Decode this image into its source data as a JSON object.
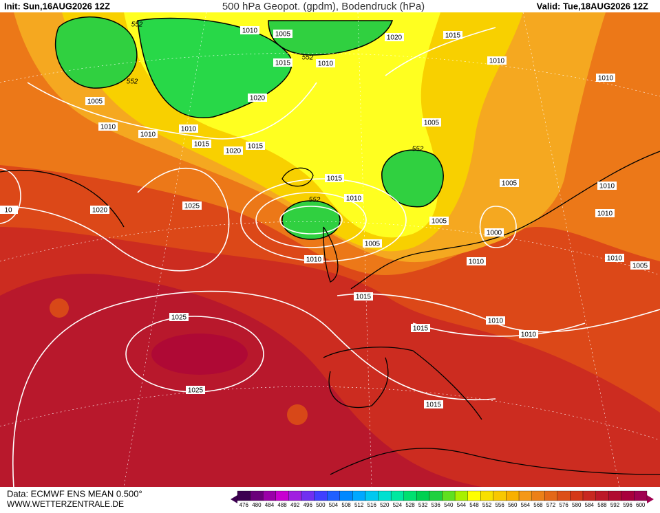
{
  "header": {
    "init": "Init: Sun,16AUG2026 12Z",
    "title": "500 hPa Geopot. (gpdm), Bodendruck (hPa)",
    "valid": "Valid: Tue,18AUG2026 12Z"
  },
  "isobar_labels": [
    "1010",
    "1005",
    "1020",
    "1015",
    "1010",
    "1010",
    "1010",
    "1015",
    "1020",
    "1005",
    "1010",
    "1010",
    "1010",
    "1015",
    "1020",
    "1015",
    "1005",
    "1015",
    "1010",
    "1005",
    "1010",
    "1020",
    "1025",
    "1010",
    "1005",
    "1000",
    "1005",
    "1010",
    "1010",
    "1010",
    "1005",
    "1015",
    "1010",
    "1010",
    "1015",
    "1025",
    "1025",
    "1015",
    "10"
  ],
  "geopotential_labels": [
    "552",
    "552",
    "552",
    "552",
    "552"
  ],
  "footer": {
    "source": "Data: ECMWF ENS MEAN 0.500°",
    "site": "WWW.WETTERZENTRALE.DE"
  },
  "legend": {
    "levels": [
      "476",
      "480",
      "484",
      "488",
      "492",
      "496",
      "500",
      "504",
      "508",
      "512",
      "516",
      "520",
      "524",
      "528",
      "532",
      "536",
      "540",
      "544",
      "548",
      "552",
      "556",
      "560",
      "564",
      "568",
      "572",
      "576",
      "580",
      "584",
      "588",
      "592",
      "596",
      "600"
    ],
    "colors": [
      "#3c0050",
      "#6a007a",
      "#9a00a8",
      "#c800d0",
      "#a020e0",
      "#7030f0",
      "#4040ff",
      "#2060ff",
      "#0088ff",
      "#00a8ff",
      "#00c8f0",
      "#00e0d0",
      "#00e8a0",
      "#00e070",
      "#00d050",
      "#20d040",
      "#60e020",
      "#a8f000",
      "#ffff00",
      "#f8e000",
      "#f8c800",
      "#f8b000",
      "#f49818",
      "#ec8018",
      "#e46818",
      "#dc5018",
      "#d43818",
      "#c82820",
      "#bc1828",
      "#b00c30",
      "#a8003c",
      "#a00050"
    ]
  }
}
